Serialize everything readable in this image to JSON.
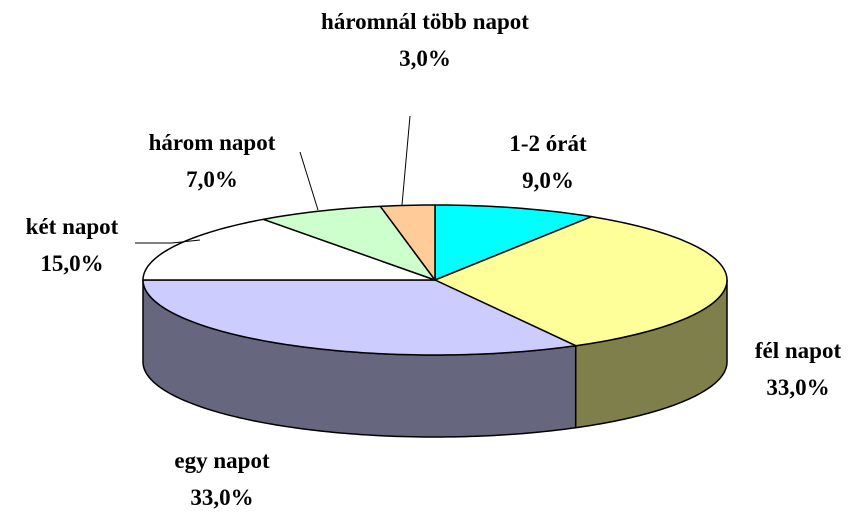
{
  "chart_data": {
    "type": "pie3d",
    "categories": [
      "1-2 órát",
      "fél napot",
      "egy napot",
      "két napot",
      "három napot",
      "háromnál több napot"
    ],
    "values": [
      9,
      33,
      33,
      15,
      7,
      3
    ],
    "value_labels": [
      "9,0%",
      "33,0%",
      "33,0%",
      "15,0%",
      "7,0%",
      "3,0%"
    ],
    "colors": [
      "#00FFFF",
      "#FFFF99",
      "#CCCCFF",
      "#FFFFFF",
      "#CCFFCC",
      "#FFCC99"
    ]
  }
}
